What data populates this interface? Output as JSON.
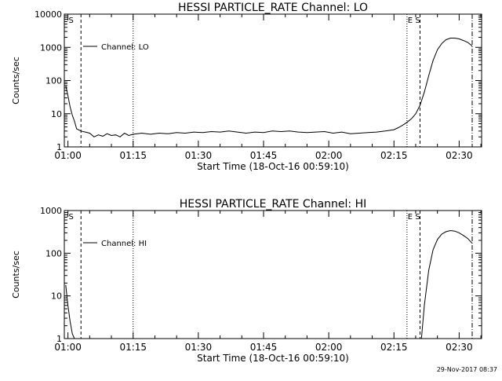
{
  "footer": {
    "timestamp": "29-Nov-2017 08:37"
  },
  "chart_data": [
    {
      "type": "line",
      "title": "HESSI PARTICLE_RATE Channel: LO",
      "xlabel": "Start Time (18-Oct-16 00:59:10)",
      "ylabel": "Counts/sec",
      "xscale": "time",
      "yscale": "log",
      "xlim": [
        "00:59:10",
        "02:35:10"
      ],
      "ylim": [
        1,
        10000
      ],
      "x_ticks": [
        "01:00",
        "01:15",
        "01:30",
        "01:45",
        "02:00",
        "02:15",
        "02:30"
      ],
      "y_ticks": [
        "1",
        "10",
        "100",
        "1000",
        "10000"
      ],
      "legend": {
        "placement": "top-left",
        "entries": [
          "Channel: LO"
        ]
      },
      "markers": [
        {
          "label": "S",
          "time": "01:00",
          "style": "none"
        },
        {
          "label": "",
          "time": "01:03",
          "style": "dashed"
        },
        {
          "label": "",
          "time": "01:15",
          "style": "dotted"
        },
        {
          "label": "E",
          "time": "02:18",
          "style": "dotted"
        },
        {
          "label": "S",
          "time": "02:21",
          "style": "dashed"
        },
        {
          "label": "",
          "time": "02:33",
          "style": "dashdot"
        }
      ],
      "series": [
        {
          "x": [
            "00:59:30",
            "01:00:00",
            "01:00:30",
            "01:01:00",
            "01:01:30",
            "01:02:00",
            "01:03:00",
            "01:04:00",
            "01:05:00",
            "01:06:00",
            "01:07:00",
            "01:08:00",
            "01:09:00",
            "01:10:00",
            "01:11:00",
            "01:12:00",
            "01:13:00",
            "01:14:00",
            "01:15:00",
            "01:17:00",
            "01:19:00",
            "01:21:00",
            "01:23:00",
            "01:25:00",
            "01:27:00",
            "01:29:00",
            "01:31:00",
            "01:33:00",
            "01:35:00",
            "01:37:00",
            "01:39:00",
            "01:41:00",
            "01:43:00",
            "01:45:00",
            "01:47:00",
            "01:49:00",
            "01:51:00",
            "01:53:00",
            "01:55:00",
            "01:57:00",
            "01:59:00",
            "02:01:00",
            "02:03:00",
            "02:05:00",
            "02:07:00",
            "02:09:00",
            "02:11:00",
            "02:13:00",
            "02:15:00",
            "02:16:00",
            "02:17:00",
            "02:18:00",
            "02:19:00",
            "02:20:00",
            "02:21:00",
            "02:22:00",
            "02:23:00",
            "02:24:00",
            "02:25:00",
            "02:26:00",
            "02:27:00",
            "02:28:00",
            "02:29:00",
            "02:30:00",
            "02:31:00",
            "02:32:00",
            "02:33:00"
          ],
          "values": [
            70,
            35,
            16,
            9,
            6,
            3.5,
            3,
            2.8,
            2.6,
            2,
            2.3,
            2.1,
            2.5,
            2.2,
            2.3,
            2,
            2.6,
            2.2,
            2.4,
            2.6,
            2.4,
            2.6,
            2.5,
            2.7,
            2.6,
            2.8,
            2.7,
            2.9,
            2.8,
            3,
            2.8,
            2.6,
            2.8,
            2.7,
            3,
            2.9,
            3,
            2.8,
            2.7,
            2.8,
            2.9,
            2.6,
            2.8,
            2.5,
            2.6,
            2.7,
            2.8,
            3,
            3.3,
            3.8,
            4.5,
            5.5,
            7,
            10,
            18,
            45,
            140,
            400,
            850,
            1300,
            1700,
            1900,
            1900,
            1800,
            1600,
            1400,
            1100
          ]
        }
      ]
    },
    {
      "type": "line",
      "title": "HESSI PARTICLE_RATE Channel: HI",
      "xlabel": "Start Time (18-Oct-16 00:59:10)",
      "ylabel": "Counts/sec",
      "xscale": "time",
      "yscale": "log",
      "xlim": [
        "00:59:10",
        "02:35:10"
      ],
      "ylim": [
        1,
        1000
      ],
      "x_ticks": [
        "01:00",
        "01:15",
        "01:30",
        "01:45",
        "02:00",
        "02:15",
        "02:30"
      ],
      "y_ticks": [
        "1",
        "10",
        "100",
        "1000"
      ],
      "legend": {
        "placement": "top-left",
        "entries": [
          "Channel: HI"
        ]
      },
      "markers": [
        {
          "label": "S",
          "time": "01:00",
          "style": "none"
        },
        {
          "label": "",
          "time": "01:03",
          "style": "dashed"
        },
        {
          "label": "",
          "time": "01:15",
          "style": "dotted"
        },
        {
          "label": "E",
          "time": "02:18",
          "style": "dotted"
        },
        {
          "label": "S",
          "time": "02:21",
          "style": "dashed"
        },
        {
          "label": "",
          "time": "02:33",
          "style": "dashdot"
        }
      ],
      "series": [
        {
          "x": [
            "00:59:30",
            "01:00:00",
            "01:00:30",
            "01:01:00",
            "01:01:30",
            "02:21:20",
            "02:22:00",
            "02:23:00",
            "02:24:00",
            "02:25:00",
            "02:26:00",
            "02:27:00",
            "02:28:00",
            "02:29:00",
            "02:30:00",
            "02:31:00",
            "02:32:00",
            "02:33:00"
          ],
          "values": [
            18,
            6,
            2.5,
            1.3,
            1,
            1,
            6,
            40,
            120,
            210,
            280,
            320,
            340,
            330,
            300,
            260,
            220,
            170
          ]
        }
      ]
    }
  ]
}
